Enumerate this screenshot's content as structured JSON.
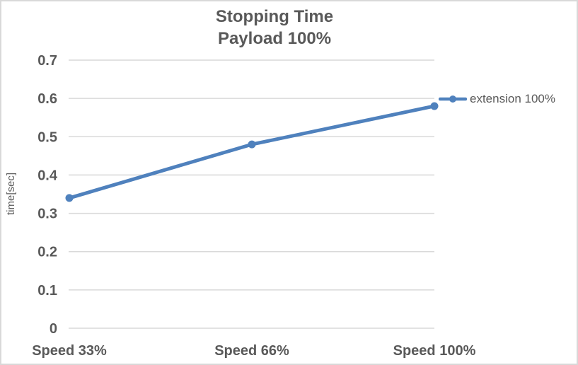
{
  "chart_data": {
    "type": "line",
    "title": "Stopping Time",
    "subtitle": "Payload 100%",
    "categories": [
      "Speed 33%",
      "Speed 66%",
      "Speed 100%"
    ],
    "series": [
      {
        "name": "extension 100%",
        "values": [
          0.34,
          0.48,
          0.58
        ]
      }
    ],
    "xlabel": "",
    "ylabel": "time[sec]",
    "ylim": [
      0,
      0.7
    ],
    "ytick_step": 0.1,
    "ytick_labels": [
      "0",
      "0.1",
      "0.2",
      "0.3",
      "0.4",
      "0.5",
      "0.6",
      "0.7"
    ],
    "grid": true,
    "legend_position": "right",
    "colors": {
      "series": "#4f81bd",
      "text": "#595959",
      "grid": "#d9d9d9",
      "border": "#d9d9d9",
      "background": "#ffffff"
    }
  }
}
